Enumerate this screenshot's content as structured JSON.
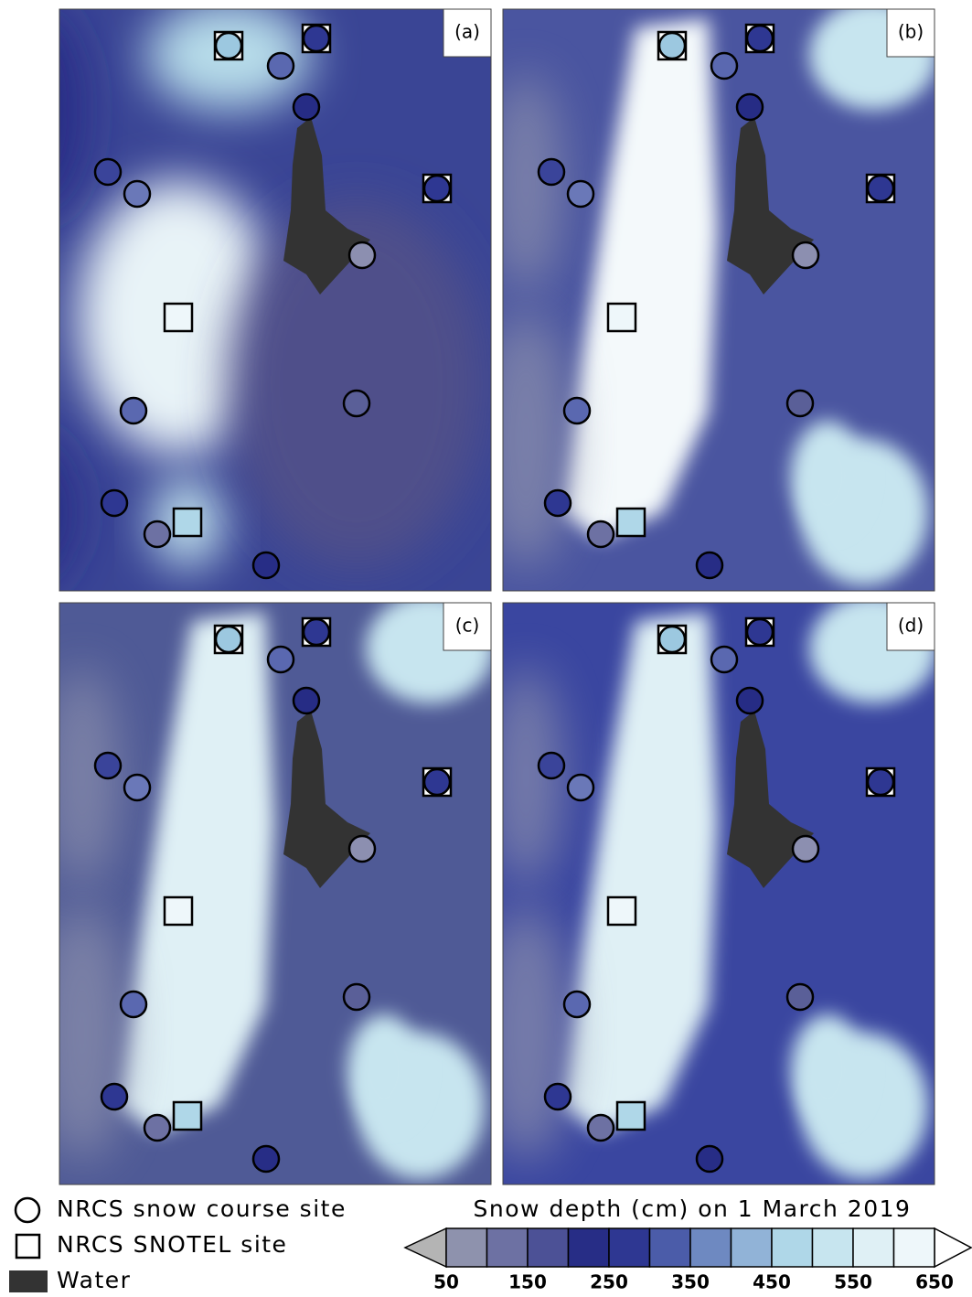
{
  "panels": [
    {
      "label": "(a)"
    },
    {
      "label": "(b)"
    },
    {
      "label": "(c)"
    },
    {
      "label": "(d)"
    }
  ],
  "legend": {
    "items": [
      "NRCS snow course site",
      "NRCS SNOTEL site",
      "Water"
    ]
  },
  "colorbar": {
    "title": "Snow depth (cm) on 1 March 2019",
    "ticks": [
      50,
      150,
      250,
      350,
      450,
      550,
      650
    ],
    "colors": [
      "#8e92ad",
      "#6d71a3",
      "#4c5196",
      "#272d86",
      "#2e3792",
      "#4b5ca9",
      "#6e89c1",
      "#91b3d7",
      "#afd7e8",
      "#c7e5ef",
      "#dff0f5",
      "#eef7fa"
    ],
    "under_color": "#b4b4b4",
    "over_color": "#ffffff"
  }
}
